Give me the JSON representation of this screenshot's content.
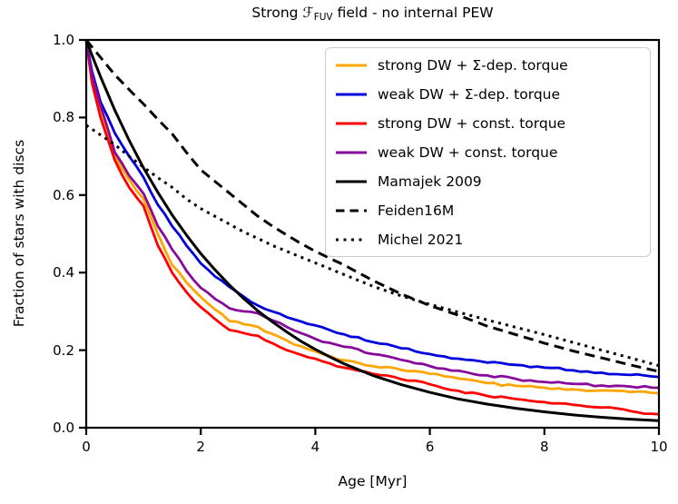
{
  "title": {
    "part1": "Strong",
    "script_f": "ℱ",
    "subscript": "FUV",
    "part2": "field - no internal PEW"
  },
  "chart_data": {
    "type": "line",
    "title": "Strong ℱ_FUV field - no internal PEW",
    "xlabel": "Age [Myr]",
    "ylabel": "Fraction of stars with discs",
    "xlim": [
      0,
      10
    ],
    "ylim": [
      0,
      1.0
    ],
    "grid": false,
    "legend_position": "upper right",
    "xticks": {
      "values": [
        0,
        2,
        4,
        6,
        8,
        10
      ],
      "labels": [
        "0",
        "2",
        "4",
        "6",
        "8",
        "10"
      ]
    },
    "yticks": {
      "values": [
        0,
        0.2,
        0.4,
        0.6,
        0.8,
        1.0
      ],
      "labels": [
        "0.0",
        "0.2",
        "0.4",
        "0.6",
        "0.8",
        "1.0"
      ]
    },
    "x": [
      0,
      0.1,
      0.25,
      0.5,
      0.75,
      1,
      1.25,
      1.5,
      1.75,
      2,
      2.25,
      2.5,
      2.75,
      3,
      3.25,
      3.5,
      3.75,
      4,
      4.25,
      4.5,
      5,
      5.5,
      6,
      6.5,
      7,
      7.5,
      8,
      8.5,
      9,
      9.5,
      10
    ],
    "series": [
      {
        "name": "strong DW + Σ-dep. torque",
        "color": "#FFA500",
        "style": "solid",
        "width": 2.8,
        "jitter": true,
        "values": [
          1.0,
          0.9,
          0.82,
          0.7,
          0.64,
          0.59,
          0.5,
          0.42,
          0.375,
          0.337,
          0.305,
          0.275,
          0.267,
          0.26,
          0.242,
          0.225,
          0.21,
          0.197,
          0.185,
          0.174,
          0.159,
          0.149,
          0.139,
          0.127,
          0.115,
          0.108,
          0.103,
          0.099,
          0.096,
          0.092,
          0.089
        ]
      },
      {
        "name": "weak DW + Σ-dep. torque",
        "color": "#0000DC",
        "style": "solid",
        "width": 2.8,
        "jitter": true,
        "values": [
          1.0,
          0.92,
          0.84,
          0.76,
          0.7,
          0.646,
          0.575,
          0.52,
          0.47,
          0.424,
          0.39,
          0.363,
          0.338,
          0.315,
          0.3,
          0.285,
          0.274,
          0.264,
          0.252,
          0.241,
          0.221,
          0.205,
          0.19,
          0.178,
          0.168,
          0.162,
          0.155,
          0.148,
          0.142,
          0.136,
          0.131
        ]
      },
      {
        "name": "strong DW + const. torque",
        "color": "#FF0000",
        "style": "solid",
        "width": 2.8,
        "jitter": true,
        "values": [
          1.0,
          0.89,
          0.8,
          0.69,
          0.62,
          0.572,
          0.47,
          0.4,
          0.35,
          0.311,
          0.28,
          0.252,
          0.244,
          0.237,
          0.218,
          0.2,
          0.188,
          0.178,
          0.166,
          0.155,
          0.139,
          0.125,
          0.112,
          0.095,
          0.082,
          0.074,
          0.066,
          0.059,
          0.052,
          0.043,
          0.035
        ]
      },
      {
        "name": "weak DW + const. torque",
        "color": "#870A9B",
        "style": "solid",
        "width": 2.8,
        "jitter": true,
        "values": [
          1.0,
          0.91,
          0.83,
          0.71,
          0.65,
          0.604,
          0.52,
          0.46,
          0.405,
          0.361,
          0.332,
          0.308,
          0.3,
          0.295,
          0.277,
          0.26,
          0.244,
          0.229,
          0.219,
          0.209,
          0.19,
          0.175,
          0.159,
          0.147,
          0.135,
          0.126,
          0.118,
          0.113,
          0.109,
          0.106,
          0.103
        ]
      },
      {
        "name": "Mamajek 2009",
        "color": "#000000",
        "style": "solid",
        "width": 3.0,
        "jitter": false,
        "values": [
          1.0,
          0.961,
          0.905,
          0.819,
          0.741,
          0.67,
          0.607,
          0.549,
          0.497,
          0.449,
          0.407,
          0.368,
          0.333,
          0.301,
          0.273,
          0.247,
          0.223,
          0.202,
          0.183,
          0.165,
          0.135,
          0.111,
          0.091,
          0.074,
          0.061,
          0.05,
          0.041,
          0.033,
          0.027,
          0.022,
          0.018
        ]
      },
      {
        "name": "Feiden16M",
        "color": "#000000",
        "style": "dashed",
        "width": 3.0,
        "jitter": false,
        "values": [
          1.0,
          0.982,
          0.955,
          0.91,
          0.872,
          0.835,
          0.795,
          0.758,
          0.71,
          0.665,
          0.635,
          0.605,
          0.575,
          0.545,
          0.52,
          0.497,
          0.475,
          0.455,
          0.437,
          0.42,
          0.38,
          0.345,
          0.315,
          0.29,
          0.262,
          0.24,
          0.218,
          0.198,
          0.18,
          0.162,
          0.145
        ]
      },
      {
        "name": "Michel 2021",
        "color": "#000000",
        "style": "dotted",
        "width": 3.0,
        "jitter": false,
        "values": [
          0.78,
          0.77,
          0.755,
          0.73,
          0.7,
          0.672,
          0.645,
          0.62,
          0.59,
          0.565,
          0.545,
          0.525,
          0.505,
          0.488,
          0.47,
          0.455,
          0.44,
          0.425,
          0.41,
          0.395,
          0.365,
          0.34,
          0.318,
          0.298,
          0.278,
          0.259,
          0.24,
          0.22,
          0.2,
          0.18,
          0.16
        ]
      }
    ]
  }
}
